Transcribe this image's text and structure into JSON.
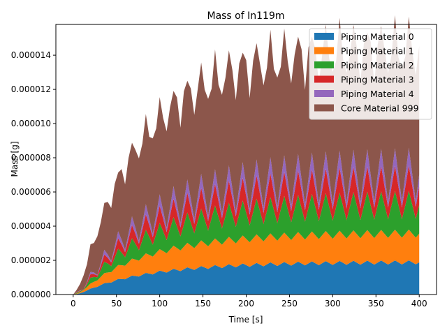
{
  "chart_data": {
    "type": "area",
    "stacked": true,
    "title": "Mass of In119m",
    "xlabel": "Time [s]",
    "ylabel": "Mass [g]",
    "xlim": [
      -20,
      420
    ],
    "ylim": [
      0,
      1.58e-05
    ],
    "xticks": [
      0,
      50,
      100,
      150,
      200,
      250,
      300,
      350,
      400
    ],
    "xtick_labels": [
      "0",
      "50",
      "100",
      "150",
      "200",
      "250",
      "300",
      "350",
      "400"
    ],
    "yticks": [
      0,
      2e-06,
      4e-06,
      6e-06,
      8e-06,
      1e-05,
      1.2e-05,
      1.4e-05
    ],
    "ytick_labels": [
      "0.000000",
      "0.000002",
      "0.000004",
      "0.000006",
      "0.000008",
      "0.000010",
      "0.000012",
      "0.000014"
    ],
    "grid": false,
    "legend_position": "top-right",
    "x": {
      "start": 0,
      "end": 400,
      "step": 4
    },
    "series": [
      {
        "name": "Piping Material 0",
        "color": "#1f77b4",
        "profile": {
          "ymax": 1.9e-06,
          "tau": 85,
          "delay": 12,
          "oscillation": 1.2e-07,
          "period": 16
        }
      },
      {
        "name": "Piping Material 1",
        "color": "#ff7f0e",
        "profile": {
          "ymax": 1.7e-06,
          "tau": 85,
          "delay": 14,
          "oscillation": 1.2e-07,
          "period": 16
        }
      },
      {
        "name": "Piping Material 2",
        "color": "#2ca02c",
        "profile": {
          "ymax": 1.7e-06,
          "tau": 90,
          "delay": 20,
          "oscillation": 6e-07,
          "period": 16
        }
      },
      {
        "name": "Piping Material 3",
        "color": "#d62728",
        "profile": {
          "ymax": 1.1e-06,
          "tau": 90,
          "delay": 22,
          "oscillation": 4e-07,
          "period": 16
        }
      },
      {
        "name": "Piping Material 4",
        "color": "#9467bd",
        "profile": {
          "ymax": 7e-07,
          "tau": 95,
          "delay": 25,
          "oscillation": 3.5e-07,
          "period": 16
        }
      },
      {
        "name": "Core Material 999",
        "color": "#8c564b",
        "profile": {
          "ymax": 7.4e-06,
          "tau": 75,
          "delay": 10,
          "oscillation": 5e-07,
          "period": 9
        }
      }
    ]
  }
}
